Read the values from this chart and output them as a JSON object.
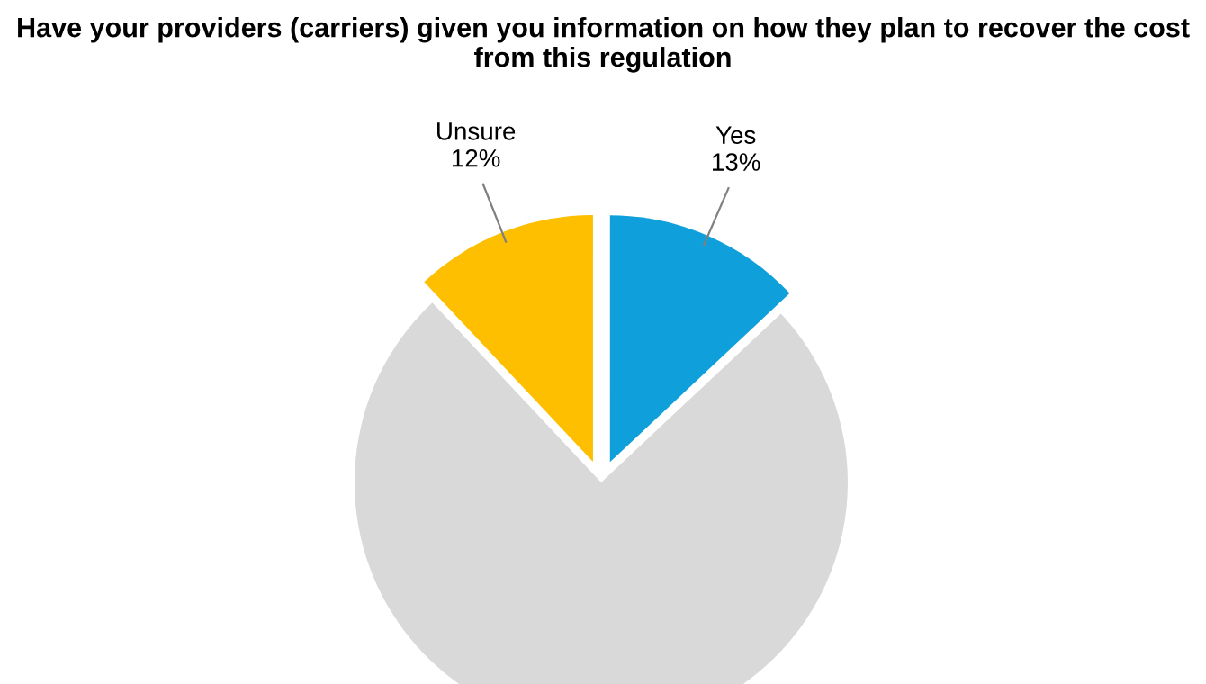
{
  "chart_data": {
    "type": "pie",
    "title": "Have your providers (carriers) given you information on how they plan to recover the cost from this regulation",
    "categories": [
      "Yes",
      null,
      "Unsure"
    ],
    "values": [
      13,
      75,
      12
    ],
    "value_labels": [
      "13%",
      null,
      "12%"
    ],
    "colors": [
      "#0fa0db",
      "#d9d9d9",
      "#fdbf00"
    ],
    "legend": false
  }
}
